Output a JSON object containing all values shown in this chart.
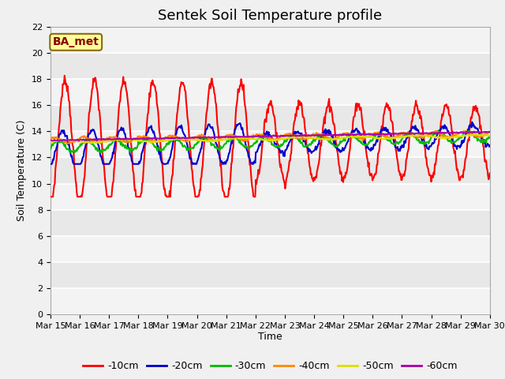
{
  "title": "Sentek Soil Temperature profile",
  "ylabel": "Soil Temperature (C)",
  "xlabel": "Time",
  "annotation": "BA_met",
  "ylim": [
    0,
    22
  ],
  "yticks": [
    0,
    2,
    4,
    6,
    8,
    10,
    12,
    14,
    16,
    18,
    20,
    22
  ],
  "xtick_labels": [
    "Mar 15",
    "Mar 16",
    "Mar 17",
    "Mar 18",
    "Mar 19",
    "Mar 20",
    "Mar 21",
    "Mar 22",
    "Mar 23",
    "Mar 24",
    "Mar 25",
    "Mar 26",
    "Mar 27",
    "Mar 28",
    "Mar 29",
    "Mar 30"
  ],
  "series": [
    {
      "label": "-10cm",
      "color": "#ff0000"
    },
    {
      "label": "-20cm",
      "color": "#0000cc"
    },
    {
      "label": "-30cm",
      "color": "#00bb00"
    },
    {
      "label": "-40cm",
      "color": "#ff8800"
    },
    {
      "label": "-50cm",
      "color": "#dddd00"
    },
    {
      "label": "-60cm",
      "color": "#aa00aa"
    }
  ],
  "bg_outer": "#f0f0f0",
  "bg_plot": "#e8e8e8",
  "title_fontsize": 13,
  "axis_fontsize": 9,
  "tick_fontsize": 8
}
